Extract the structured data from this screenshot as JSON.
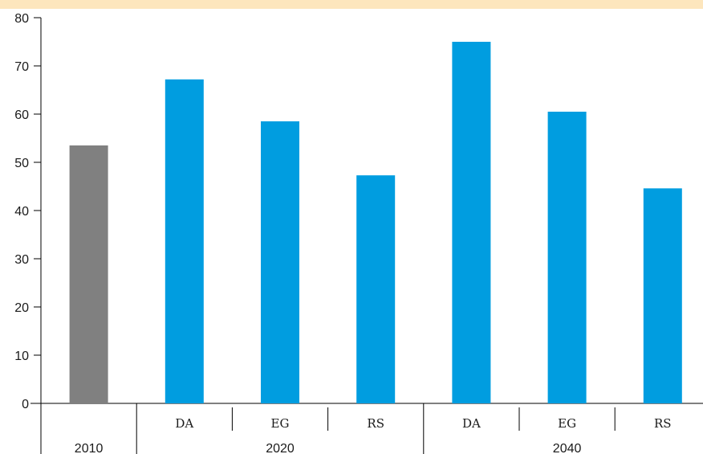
{
  "chart_data": {
    "type": "bar",
    "title": "",
    "xlabel": "",
    "ylabel": "",
    "ylim": [
      0,
      80
    ],
    "yticks": [
      0,
      10,
      20,
      30,
      40,
      50,
      60,
      70,
      80
    ],
    "grid": false,
    "groups": [
      {
        "label": "2010",
        "bars": [
          {
            "category": "",
            "value": 53.5
          }
        ]
      },
      {
        "label": "2020",
        "bars": [
          {
            "category": "DA",
            "value": 67.2
          },
          {
            "category": "EG",
            "value": 58.5
          },
          {
            "category": "RS",
            "value": 47.3
          }
        ]
      },
      {
        "label": "2040",
        "bars": [
          {
            "category": "DA",
            "value": 75.0
          },
          {
            "category": "EG",
            "value": 60.5
          },
          {
            "category": "RS",
            "value": 44.6
          }
        ]
      }
    ],
    "colors": {
      "historical": "#808080",
      "projection": "#009de0"
    }
  }
}
